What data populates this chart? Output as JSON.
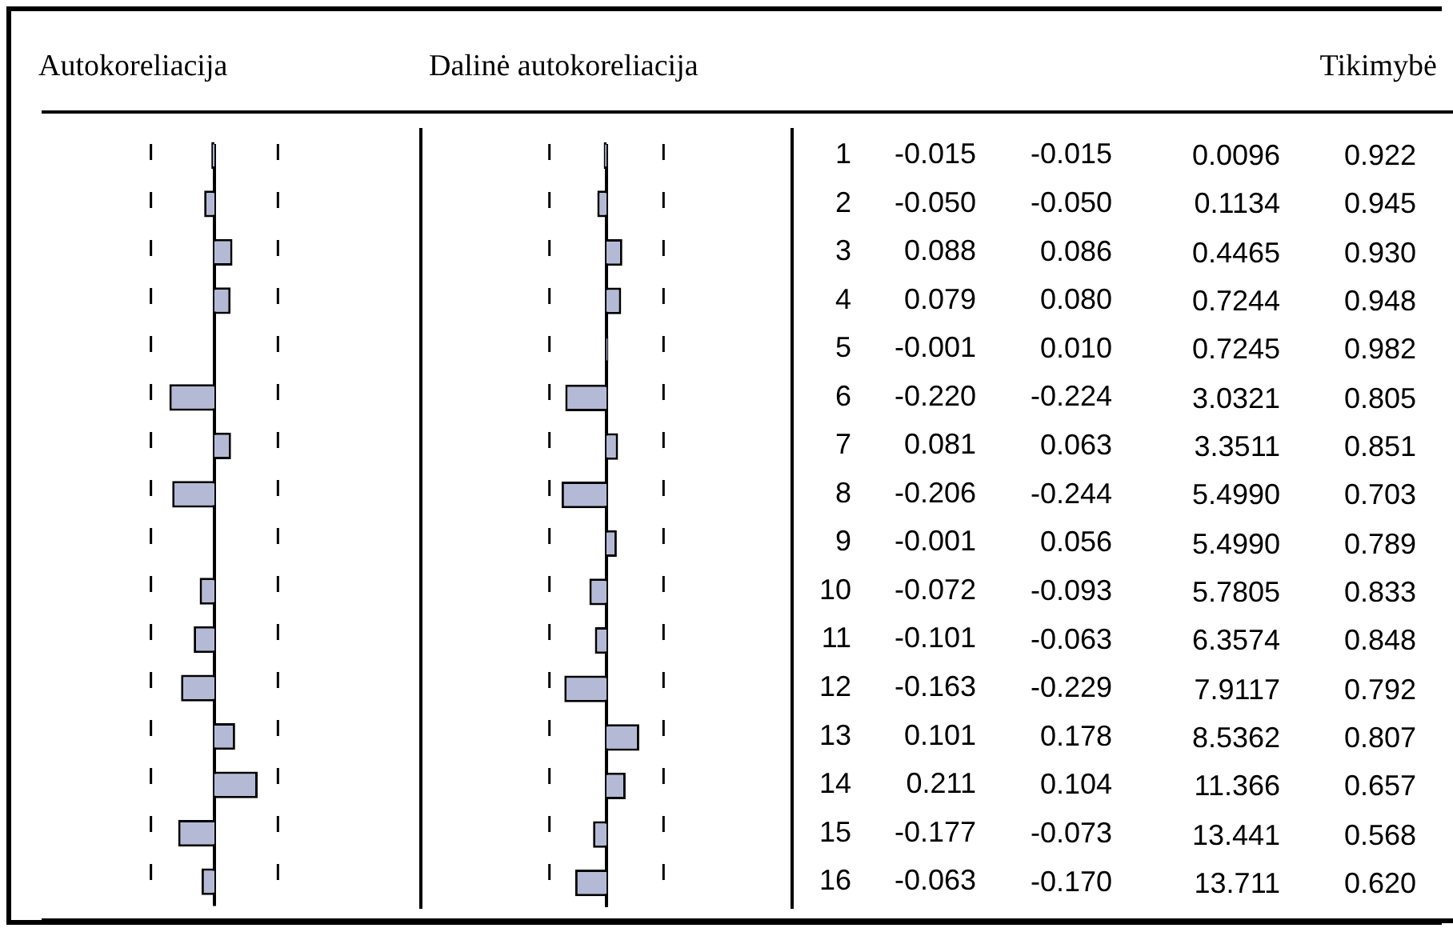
{
  "chart_data": [
    {
      "type": "bar",
      "orientation": "horizontal",
      "title": "Autokoreliacija",
      "categories": [
        "1",
        "2",
        "3",
        "4",
        "5",
        "6",
        "7",
        "8",
        "9",
        "10",
        "11",
        "12",
        "13",
        "14",
        "15",
        "16"
      ],
      "values": [
        -0.015,
        -0.05,
        0.088,
        0.079,
        -0.001,
        -0.22,
        0.081,
        -0.206,
        -0.001,
        -0.072,
        -0.101,
        -0.163,
        0.101,
        0.211,
        -0.177,
        -0.063
      ],
      "value_labels": [
        "-0.015",
        "-0.050",
        "0.088",
        "0.079",
        "-0.001",
        "-0.220",
        "0.081",
        "-0.206",
        "-0.001",
        "-0.072",
        "-0.101",
        "-0.163",
        "0.101",
        "0.211",
        "-0.177",
        "-0.063"
      ],
      "color": "#b4bad6",
      "xlim": [
        -1,
        1
      ],
      "tick_labels": "y",
      "ref_lines": [
        {
          "axis": "x",
          "value": -0.31,
          "line_style": "dashed"
        },
        {
          "axis": "x",
          "value": 0.31,
          "line_style": "dashed"
        }
      ]
    },
    {
      "type": "bar",
      "orientation": "horizontal",
      "title": "Dalinė autokoreliacija",
      "categories": [
        null,
        null,
        null,
        null,
        null,
        null,
        null,
        null,
        null,
        null,
        null,
        null,
        null,
        null,
        null,
        null
      ],
      "values": [
        -0.015,
        -0.05,
        0.086,
        0.08,
        0.01,
        -0.224,
        0.063,
        -0.244,
        0.056,
        -0.093,
        -0.063,
        -0.229,
        0.178,
        0.104,
        -0.073,
        -0.17
      ],
      "value_labels": [
        "-0.015",
        "-0.050",
        "0.086",
        "0.080",
        "0.010",
        "-0.224",
        "0.063",
        "-0.244",
        "0.056",
        "-0.093",
        "-0.063",
        "-0.229",
        "0.178",
        "0.104",
        "-0.073",
        "-0.170"
      ],
      "color": "#b4bad6",
      "xlim": [
        -1,
        1
      ],
      "tick_labels": false,
      "ref_lines": [
        {
          "axis": "x",
          "value": -0.31,
          "line_style": "dashed"
        },
        {
          "axis": "x",
          "value": 0.31,
          "line_style": "dashed"
        }
      ]
    },
    {
      "type": "other",
      "title": "Tikimybė",
      "annotations": [
        "0.0096",
        "0.1134",
        "0.4465",
        "0.7244",
        "0.7245",
        "3.0321",
        "3.3511",
        "5.4990",
        "5.4990",
        "5.7805",
        "6.3574",
        "7.9117",
        "8.5362",
        "11.366",
        "13.441",
        "13.711",
        "0.922",
        "0.945",
        "0.930",
        "0.948",
        "0.982",
        "0.805",
        "0.851",
        "0.703",
        "0.789",
        "0.833",
        "0.848",
        "0.792",
        "0.807",
        "0.657",
        "0.568",
        "0.620"
      ]
    }
  ]
}
